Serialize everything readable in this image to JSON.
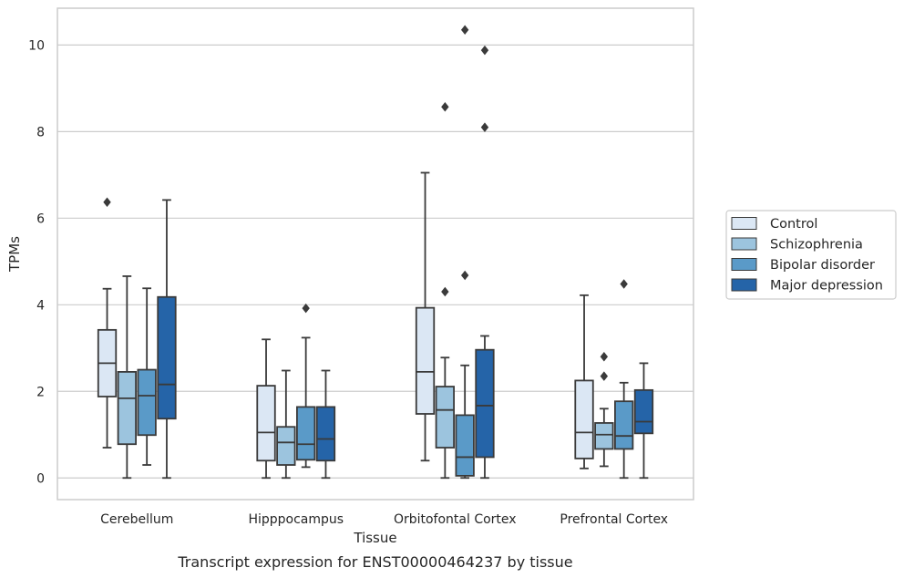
{
  "chart_data": {
    "type": "boxplot",
    "caption": "Transcript expression for ENST00000464237 by tissue",
    "xlabel": "Tissue",
    "ylabel": "TPMs",
    "ylim": [
      -0.5,
      10.85
    ],
    "yticks": [
      0,
      2,
      4,
      6,
      8,
      10
    ],
    "grid": "horizontal",
    "legend_position": "right",
    "categories": [
      "Cerebellum",
      "Hipppocampus",
      "Orbitofontal Cortex",
      "Prefrontal Cortex"
    ],
    "series": [
      {
        "name": "Control",
        "color": "#dbe7f4",
        "boxes": [
          {
            "whislo": 0.7,
            "q1": 1.88,
            "med": 2.65,
            "q3": 3.42,
            "whishi": 4.37,
            "fliers": [
              6.37
            ]
          },
          {
            "whislo": 0.0,
            "q1": 0.4,
            "med": 1.05,
            "q3": 2.13,
            "whishi": 3.2,
            "fliers": []
          },
          {
            "whislo": 0.4,
            "q1": 1.48,
            "med": 2.45,
            "q3": 3.93,
            "whishi": 7.05,
            "fliers": []
          },
          {
            "whislo": 0.22,
            "q1": 0.45,
            "med": 1.05,
            "q3": 2.25,
            "whishi": 4.22,
            "fliers": []
          }
        ]
      },
      {
        "name": "Schizophrenia",
        "color": "#9cc4de",
        "boxes": [
          {
            "whislo": 0.0,
            "q1": 0.78,
            "med": 1.84,
            "q3": 2.45,
            "whishi": 4.66,
            "fliers": []
          },
          {
            "whislo": 0.0,
            "q1": 0.3,
            "med": 0.82,
            "q3": 1.18,
            "whishi": 2.48,
            "fliers": []
          },
          {
            "whislo": 0.0,
            "q1": 0.7,
            "med": 1.57,
            "q3": 2.11,
            "whishi": 2.78,
            "fliers": [
              4.3,
              8.57
            ]
          },
          {
            "whislo": 0.27,
            "q1": 0.67,
            "med": 1.0,
            "q3": 1.27,
            "whishi": 1.6,
            "fliers": [
              2.35,
              2.8
            ]
          }
        ]
      },
      {
        "name": "Bipolar disorder",
        "color": "#5a9ac8",
        "boxes": [
          {
            "whislo": 0.3,
            "q1": 0.99,
            "med": 1.9,
            "q3": 2.5,
            "whishi": 4.38,
            "fliers": []
          },
          {
            "whislo": 0.25,
            "q1": 0.42,
            "med": 0.78,
            "q3": 1.64,
            "whishi": 3.24,
            "fliers": [
              3.92
            ]
          },
          {
            "whislo": 0.0,
            "q1": 0.05,
            "med": 0.48,
            "q3": 1.45,
            "whishi": 2.6,
            "fliers": [
              4.68,
              10.35
            ]
          },
          {
            "whislo": 0.0,
            "q1": 0.67,
            "med": 0.97,
            "q3": 1.77,
            "whishi": 2.2,
            "fliers": [
              4.48
            ]
          }
        ]
      },
      {
        "name": "Major depression",
        "color": "#2564a8",
        "boxes": [
          {
            "whislo": 0.0,
            "q1": 1.37,
            "med": 2.16,
            "q3": 4.18,
            "whishi": 6.42,
            "fliers": []
          },
          {
            "whislo": 0.0,
            "q1": 0.4,
            "med": 0.9,
            "q3": 1.64,
            "whishi": 2.48,
            "fliers": []
          },
          {
            "whislo": 0.0,
            "q1": 0.48,
            "med": 1.67,
            "q3": 2.96,
            "whishi": 3.28,
            "fliers": [
              8.1,
              9.88
            ]
          },
          {
            "whislo": 0.0,
            "q1": 1.03,
            "med": 1.3,
            "q3": 2.03,
            "whishi": 2.65,
            "fliers": []
          }
        ]
      }
    ]
  }
}
